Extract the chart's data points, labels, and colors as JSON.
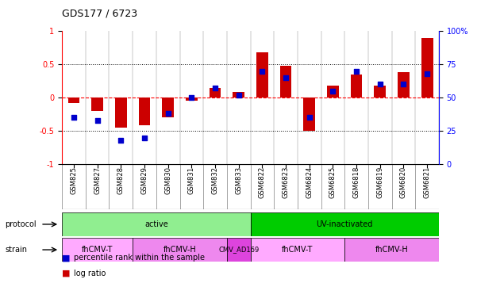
{
  "title": "GDS177 / 6723",
  "samples": [
    "GSM825",
    "GSM827",
    "GSM828",
    "GSM829",
    "GSM830",
    "GSM831",
    "GSM832",
    "GSM833",
    "GSM6822",
    "GSM6823",
    "GSM6824",
    "GSM6825",
    "GSM6818",
    "GSM6819",
    "GSM6820",
    "GSM6821"
  ],
  "log_ratio": [
    -0.08,
    -0.2,
    -0.45,
    -0.42,
    -0.3,
    -0.05,
    0.15,
    0.08,
    0.68,
    0.48,
    -0.5,
    0.18,
    0.35,
    0.18,
    0.38,
    0.9
  ],
  "pct_rank": [
    35,
    33,
    18,
    20,
    38,
    50,
    57,
    52,
    70,
    65,
    35,
    55,
    70,
    60,
    60,
    68
  ],
  "protocol_groups": [
    {
      "label": "active",
      "start": 0,
      "end": 7,
      "color": "#90ee90"
    },
    {
      "label": "UV-inactivated",
      "start": 8,
      "end": 15,
      "color": "#00cc00"
    }
  ],
  "strain_groups": [
    {
      "label": "fhCMV-T",
      "start": 0,
      "end": 2,
      "color": "#ffaaff"
    },
    {
      "label": "fhCMV-H",
      "start": 3,
      "end": 6,
      "color": "#ee88ee"
    },
    {
      "label": "CMV_AD169",
      "start": 7,
      "end": 7,
      "color": "#dd44dd"
    },
    {
      "label": "fhCMV-T",
      "start": 8,
      "end": 11,
      "color": "#ffaaff"
    },
    {
      "label": "fhCMV-H",
      "start": 12,
      "end": 15,
      "color": "#ee88ee"
    }
  ],
  "bar_color": "#cc0000",
  "dot_color": "#0000cc",
  "ylim": [
    -1,
    1
  ],
  "yticks_left": [
    -1,
    -0.5,
    0,
    0.5,
    1
  ],
  "yticks_right": [
    0,
    25,
    50,
    75,
    100
  ],
  "ytick_right_labels": [
    "0",
    "25",
    "50",
    "75",
    "100%"
  ],
  "hlines": [
    0.5,
    0,
    -0.5
  ],
  "hline_styles": [
    "dotted",
    "dashed",
    "dotted"
  ]
}
